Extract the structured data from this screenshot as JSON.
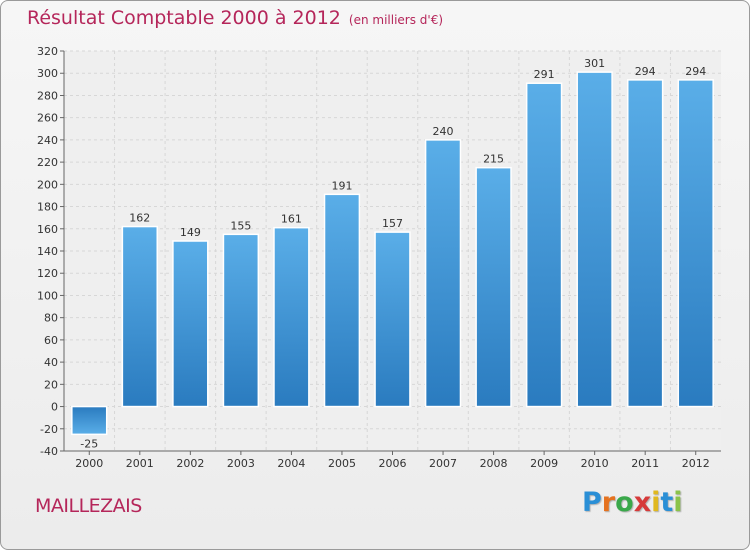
{
  "header": {
    "title": "Résultat Comptable 2000 à 2012",
    "subtitle": "(en milliers d'€)"
  },
  "footer": {
    "commune": "MAILLEZAIS",
    "logo_letters": [
      "P",
      "r",
      "o",
      "x",
      "i",
      "t",
      "i"
    ],
    "logo_colors": [
      "#2a8fd6",
      "#e5721f",
      "#3aa84a",
      "#d63a3a",
      "#e0b81f",
      "#2a8fd6",
      "#8bc34a"
    ]
  },
  "chart_data": {
    "type": "bar",
    "title": "Résultat Comptable 2000 à 2012",
    "categories": [
      "2000",
      "2001",
      "2002",
      "2003",
      "2004",
      "2005",
      "2006",
      "2007",
      "2008",
      "2009",
      "2010",
      "2011",
      "2012"
    ],
    "values": [
      -25,
      162,
      149,
      155,
      161,
      191,
      157,
      240,
      215,
      291,
      301,
      294,
      294
    ],
    "ylim": [
      -40,
      320
    ],
    "yticks": [
      -40,
      -20,
      0,
      20,
      40,
      60,
      80,
      100,
      120,
      140,
      160,
      180,
      200,
      220,
      240,
      260,
      280,
      300,
      320
    ],
    "grid": true,
    "bar_color_top": "#5aaee8",
    "bar_color_bottom": "#2a7bbf",
    "grid_color": "#d7d7d7"
  }
}
